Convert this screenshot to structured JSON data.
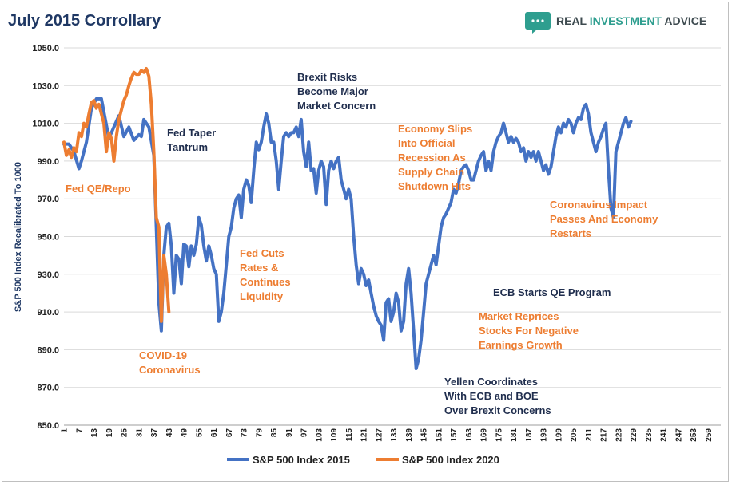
{
  "title": "July 2015 Corrollary",
  "brand": {
    "part1": "REAL ",
    "part2": "INVESTMENT",
    "part3": " ADVICE",
    "color_dark": "#3d4a4f",
    "color_accent": "#2e9e8f",
    "logo": "speech-bubble-icon"
  },
  "colors": {
    "series_2015": "#4472c4",
    "series_2020": "#ed7d31",
    "ann_dark": "#1f2d4d",
    "ann_orange": "#ed7d31"
  },
  "chart_data": {
    "type": "line",
    "ylabel": "S&P 500 Index Recalibrated To 1000",
    "xlabel": "",
    "ylim": [
      850,
      1050
    ],
    "yticks": [
      "850.0",
      "870.0",
      "890.0",
      "910.0",
      "930.0",
      "950.0",
      "970.0",
      "990.0",
      "1010.0",
      "1030.0",
      "1050.0"
    ],
    "xlim": [
      1,
      264
    ],
    "xticks": [
      "1",
      "7",
      "13",
      "19",
      "25",
      "31",
      "37",
      "43",
      "49",
      "55",
      "61",
      "67",
      "73",
      "79",
      "85",
      "91",
      "97",
      "103",
      "109",
      "115",
      "121",
      "127",
      "133",
      "139",
      "145",
      "151",
      "157",
      "163",
      "169",
      "175",
      "181",
      "187",
      "193",
      "199",
      "205",
      "211",
      "217",
      "223",
      "229",
      "235",
      "241",
      "247",
      "253",
      "259"
    ],
    "grid": true,
    "legend_position": "bottom",
    "series": [
      {
        "name": "S&P 500 Index 2015",
        "points": [
          [
            1,
            999
          ],
          [
            3,
            999
          ],
          [
            5,
            995
          ],
          [
            7,
            986
          ],
          [
            8,
            990
          ],
          [
            10,
            1000
          ],
          [
            12,
            1018
          ],
          [
            14,
            1023
          ],
          [
            16,
            1023
          ],
          [
            17,
            1016
          ],
          [
            19,
            1002
          ],
          [
            21,
            1008
          ],
          [
            23,
            1014
          ],
          [
            25,
            1003
          ],
          [
            27,
            1008
          ],
          [
            29,
            1001
          ],
          [
            31,
            1004
          ],
          [
            32,
            1003
          ],
          [
            33,
            1012
          ],
          [
            35,
            1008
          ],
          [
            37,
            993
          ],
          [
            38,
            955
          ],
          [
            39,
            915
          ],
          [
            40,
            900
          ],
          [
            41,
            940
          ],
          [
            42,
            955
          ],
          [
            43,
            957
          ],
          [
            44,
            945
          ],
          [
            45,
            920
          ],
          [
            46,
            940
          ],
          [
            47,
            938
          ],
          [
            48,
            925
          ],
          [
            49,
            946
          ],
          [
            50,
            945
          ],
          [
            51,
            934
          ],
          [
            52,
            945
          ],
          [
            53,
            940
          ],
          [
            54,
            946
          ],
          [
            55,
            960
          ],
          [
            56,
            956
          ],
          [
            57,
            945
          ],
          [
            58,
            937
          ],
          [
            59,
            945
          ],
          [
            60,
            940
          ],
          [
            61,
            933
          ],
          [
            62,
            930
          ],
          [
            63,
            905
          ],
          [
            64,
            910
          ],
          [
            65,
            920
          ],
          [
            66,
            935
          ],
          [
            67,
            950
          ],
          [
            68,
            955
          ],
          [
            69,
            965
          ],
          [
            70,
            970
          ],
          [
            71,
            972
          ],
          [
            72,
            960
          ],
          [
            73,
            975
          ],
          [
            74,
            980
          ],
          [
            75,
            977
          ],
          [
            76,
            968
          ],
          [
            77,
            985
          ],
          [
            78,
            1000
          ],
          [
            79,
            996
          ],
          [
            80,
            1000
          ],
          [
            81,
            1008
          ],
          [
            82,
            1015
          ],
          [
            83,
            1010
          ],
          [
            84,
            1000
          ],
          [
            85,
            1000
          ],
          [
            86,
            990
          ],
          [
            87,
            975
          ],
          [
            88,
            990
          ],
          [
            89,
            1003
          ],
          [
            90,
            1005
          ],
          [
            91,
            1003
          ],
          [
            92,
            1005
          ],
          [
            93,
            1005
          ],
          [
            94,
            1008
          ],
          [
            95,
            1003
          ],
          [
            96,
            1012
          ],
          [
            97,
            995
          ],
          [
            98,
            987
          ],
          [
            99,
            1000
          ],
          [
            100,
            985
          ],
          [
            101,
            986
          ],
          [
            102,
            973
          ],
          [
            103,
            985
          ],
          [
            104,
            990
          ],
          [
            105,
            987
          ],
          [
            106,
            967
          ],
          [
            107,
            985
          ],
          [
            108,
            990
          ],
          [
            109,
            986
          ],
          [
            110,
            990
          ],
          [
            111,
            992
          ],
          [
            112,
            980
          ],
          [
            113,
            975
          ],
          [
            114,
            970
          ],
          [
            115,
            975
          ],
          [
            116,
            970
          ],
          [
            117,
            950
          ],
          [
            118,
            935
          ],
          [
            119,
            925
          ],
          [
            120,
            933
          ],
          [
            121,
            930
          ],
          [
            122,
            924
          ],
          [
            123,
            927
          ],
          [
            124,
            920
          ],
          [
            125,
            913
          ],
          [
            126,
            908
          ],
          [
            127,
            905
          ],
          [
            128,
            903
          ],
          [
            129,
            895
          ],
          [
            130,
            915
          ],
          [
            131,
            917
          ],
          [
            132,
            905
          ],
          [
            133,
            910
          ],
          [
            134,
            920
          ],
          [
            135,
            915
          ],
          [
            136,
            900
          ],
          [
            137,
            905
          ],
          [
            138,
            925
          ],
          [
            139,
            933
          ],
          [
            140,
            920
          ],
          [
            141,
            900
          ],
          [
            142,
            880
          ],
          [
            143,
            885
          ],
          [
            144,
            895
          ],
          [
            145,
            910
          ],
          [
            146,
            925
          ],
          [
            147,
            930
          ],
          [
            148,
            935
          ],
          [
            149,
            940
          ],
          [
            150,
            935
          ],
          [
            151,
            945
          ],
          [
            152,
            955
          ],
          [
            153,
            960
          ],
          [
            154,
            962
          ],
          [
            155,
            965
          ],
          [
            156,
            968
          ],
          [
            157,
            975
          ],
          [
            158,
            973
          ],
          [
            159,
            978
          ],
          [
            160,
            985
          ],
          [
            161,
            987
          ],
          [
            162,
            988
          ],
          [
            163,
            985
          ],
          [
            164,
            980
          ],
          [
            165,
            980
          ],
          [
            166,
            985
          ],
          [
            167,
            990
          ],
          [
            168,
            993
          ],
          [
            169,
            995
          ],
          [
            170,
            985
          ],
          [
            171,
            990
          ],
          [
            172,
            985
          ],
          [
            173,
            995
          ],
          [
            174,
            1000
          ],
          [
            175,
            1003
          ],
          [
            176,
            1005
          ],
          [
            177,
            1010
          ],
          [
            178,
            1005
          ],
          [
            179,
            1000
          ],
          [
            180,
            1003
          ],
          [
            181,
            1000
          ],
          [
            182,
            1002
          ],
          [
            183,
            1000
          ],
          [
            184,
            995
          ],
          [
            185,
            997
          ],
          [
            186,
            990
          ],
          [
            187,
            995
          ],
          [
            188,
            992
          ],
          [
            189,
            995
          ],
          [
            190,
            990
          ],
          [
            191,
            995
          ],
          [
            192,
            990
          ],
          [
            193,
            985
          ],
          [
            194,
            988
          ],
          [
            195,
            983
          ],
          [
            196,
            987
          ],
          [
            197,
            995
          ],
          [
            198,
            1003
          ],
          [
            199,
            1008
          ],
          [
            200,
            1005
          ],
          [
            201,
            1010
          ],
          [
            202,
            1008
          ],
          [
            203,
            1012
          ],
          [
            204,
            1010
          ],
          [
            205,
            1005
          ],
          [
            206,
            1010
          ],
          [
            207,
            1013
          ],
          [
            208,
            1012
          ],
          [
            209,
            1018
          ],
          [
            210,
            1020
          ],
          [
            211,
            1015
          ],
          [
            212,
            1005
          ],
          [
            213,
            1000
          ],
          [
            214,
            995
          ],
          [
            215,
            1000
          ],
          [
            216,
            1003
          ],
          [
            217,
            1007
          ],
          [
            218,
            1010
          ],
          [
            219,
            985
          ],
          [
            220,
            965
          ],
          [
            221,
            960
          ],
          [
            222,
            995
          ],
          [
            223,
            1000
          ],
          [
            224,
            1005
          ],
          [
            225,
            1010
          ],
          [
            226,
            1013
          ],
          [
            227,
            1008
          ],
          [
            228,
            1011
          ]
        ]
      },
      {
        "name": "S&P 500 Index 2020",
        "points": [
          [
            1,
            1000
          ],
          [
            2,
            993
          ],
          [
            3,
            996
          ],
          [
            4,
            992
          ],
          [
            5,
            997
          ],
          [
            6,
            995
          ],
          [
            7,
            1005
          ],
          [
            8,
            1003
          ],
          [
            9,
            1010
          ],
          [
            10,
            1008
          ],
          [
            11,
            1015
          ],
          [
            12,
            1021
          ],
          [
            13,
            1022
          ],
          [
            14,
            1018
          ],
          [
            15,
            1020
          ],
          [
            16,
            1015
          ],
          [
            17,
            1010
          ],
          [
            18,
            995
          ],
          [
            19,
            1005
          ],
          [
            20,
            1002
          ],
          [
            21,
            990
          ],
          [
            22,
            1003
          ],
          [
            23,
            1012
          ],
          [
            24,
            1017
          ],
          [
            25,
            1022
          ],
          [
            26,
            1025
          ],
          [
            27,
            1030
          ],
          [
            28,
            1034
          ],
          [
            29,
            1037
          ],
          [
            30,
            1036
          ],
          [
            31,
            1036
          ],
          [
            32,
            1038
          ],
          [
            33,
            1037
          ],
          [
            34,
            1039
          ],
          [
            35,
            1035
          ],
          [
            36,
            1020
          ],
          [
            37,
            995
          ],
          [
            38,
            960
          ],
          [
            39,
            955
          ],
          [
            40,
            905
          ],
          [
            41,
            940
          ],
          [
            42,
            930
          ],
          [
            43,
            910
          ]
        ]
      }
    ],
    "annotations": [
      {
        "text": [
          "Fed QE/Repo"
        ],
        "color": "orange"
      },
      {
        "text": [
          "COVID-19",
          "Coronavirus"
        ],
        "color": "orange"
      },
      {
        "text": [
          "Fed Taper",
          "Tantrum"
        ],
        "color": "dark"
      },
      {
        "text": [
          "Fed Cuts",
          "Rates &",
          "Continues",
          "Liquidity"
        ],
        "color": "orange"
      },
      {
        "text": [
          "Brexit Risks",
          "Become Major",
          "Market Concern"
        ],
        "color": "dark"
      },
      {
        "text": [
          "Economy Slips",
          "Into Official",
          "Recession As",
          "Supply Chain",
          "Shutdown Hits"
        ],
        "color": "orange"
      },
      {
        "text": [
          "Yellen Coordinates",
          "With ECB and BOE",
          "Over Brexit Concerns"
        ],
        "color": "dark"
      },
      {
        "text": [
          "Market Reprices",
          "Stocks For Negative",
          "Earnings Growth"
        ],
        "color": "orange"
      },
      {
        "text": [
          "ECB Starts QE Program"
        ],
        "color": "dark"
      },
      {
        "text": [
          "Coronavirus Impact",
          "Passes And Economy",
          "Restarts"
        ],
        "color": "orange"
      }
    ]
  }
}
